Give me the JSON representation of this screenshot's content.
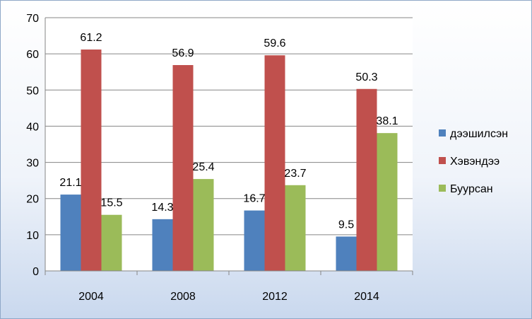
{
  "chart_data": {
    "type": "bar",
    "title": "",
    "xlabel": "",
    "ylabel": "",
    "categories": [
      "2004",
      "2008",
      "2012",
      "2014"
    ],
    "series": [
      {
        "name": "дээшилсэн",
        "color": "#4f81bd",
        "values": [
          21.1,
          14.3,
          16.7,
          9.5
        ]
      },
      {
        "name": "Хэвэндээ",
        "color": "#c0504d",
        "values": [
          61.2,
          56.9,
          59.6,
          50.3
        ]
      },
      {
        "name": "Буурсан",
        "color": "#9bbb59",
        "values": [
          15.5,
          25.4,
          23.7,
          38.1
        ]
      }
    ],
    "ylim": [
      0,
      70
    ],
    "yticks": [
      "0",
      "10",
      "20",
      "30",
      "40",
      "50",
      "60",
      "70"
    ],
    "grid": true,
    "legend": "right"
  }
}
